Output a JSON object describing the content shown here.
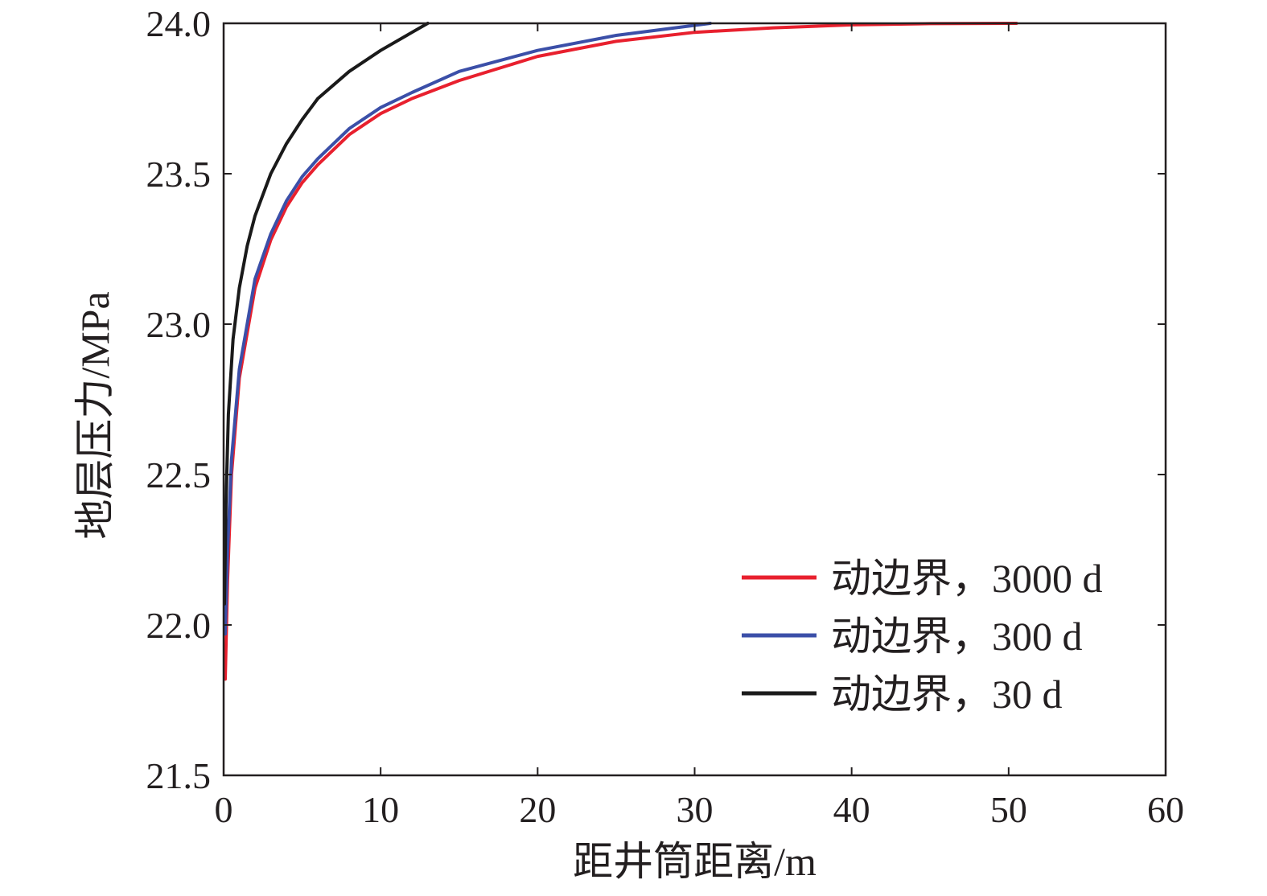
{
  "chart_data": {
    "type": "line",
    "title": "",
    "xlabel": "距井筒距离/m",
    "ylabel": "地层压力/MPa",
    "xlim": [
      0,
      60
    ],
    "ylim": [
      21.5,
      24.0
    ],
    "x_ticks": [
      "0",
      "10",
      "20",
      "30",
      "40",
      "50",
      "60"
    ],
    "y_ticks": [
      "21.5",
      "22.0",
      "22.5",
      "23.0",
      "23.5",
      "24.0"
    ],
    "grid": false,
    "legend_position": "bottom-right",
    "series": [
      {
        "name": "动边界，3000 d",
        "color": "#e8202e",
        "x": [
          0.1,
          0.25,
          0.5,
          1,
          2,
          3,
          4,
          5,
          6,
          8,
          10,
          12,
          15,
          20,
          25,
          30,
          35,
          40,
          45,
          50.5
        ],
        "y": [
          21.82,
          22.15,
          22.5,
          22.82,
          23.12,
          23.28,
          23.39,
          23.47,
          23.53,
          23.63,
          23.7,
          23.75,
          23.81,
          23.89,
          23.94,
          23.97,
          23.985,
          23.995,
          23.999,
          24.0
        ]
      },
      {
        "name": "动边界，300 d",
        "color": "#3b4fa8",
        "x": [
          0.1,
          0.25,
          0.5,
          1,
          2,
          3,
          4,
          5,
          6,
          8,
          10,
          12,
          15,
          20,
          25,
          31
        ],
        "y": [
          21.97,
          22.25,
          22.55,
          22.85,
          23.15,
          23.3,
          23.41,
          23.49,
          23.55,
          23.65,
          23.72,
          23.77,
          23.84,
          23.91,
          23.96,
          24.0
        ]
      },
      {
        "name": "动边界，30 d",
        "color": "#1a1a1a",
        "x": [
          0.05,
          0.15,
          0.3,
          0.6,
          1,
          1.5,
          2,
          3,
          4,
          5,
          6,
          8,
          10,
          12,
          13
        ],
        "y": [
          22.07,
          22.4,
          22.7,
          22.95,
          23.12,
          23.26,
          23.36,
          23.5,
          23.6,
          23.68,
          23.75,
          23.84,
          23.91,
          23.97,
          24.0
        ]
      }
    ]
  }
}
